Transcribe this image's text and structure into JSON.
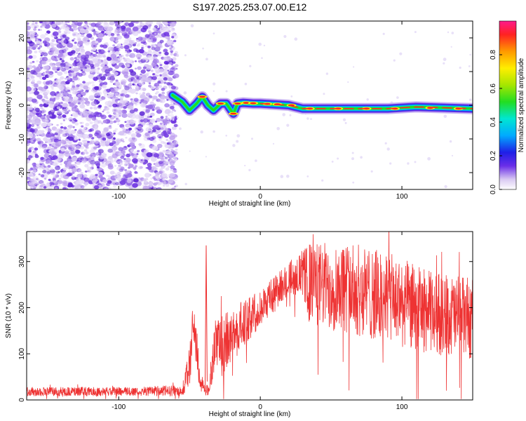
{
  "title": "S197.2025.253.07.00.E12",
  "chart_data": [
    {
      "type": "heatmap",
      "name": "spectrogram",
      "xlabel": "Height of straight line (km)",
      "ylabel": "Frequency (Hz)",
      "xlim": [
        -165,
        150
      ],
      "ylim": [
        -25,
        25
      ],
      "x_ticks": [
        -100,
        0,
        100
      ],
      "x_tick_labels": [
        "-100",
        "0",
        "100"
      ],
      "y_ticks": [
        -20,
        -10,
        0,
        10,
        20
      ],
      "y_tick_labels": [
        "-20",
        "-10",
        "0",
        "10",
        "20"
      ],
      "noise_region_km": [
        -165,
        -62
      ],
      "signal_start_km": -62,
      "signal_track": [
        {
          "x": -62,
          "y": 3.0
        },
        {
          "x": -55,
          "y": 1.0
        },
        {
          "x": -50,
          "y": -1.5
        },
        {
          "x": -45,
          "y": 0.5
        },
        {
          "x": -41,
          "y": 2.5
        },
        {
          "x": -37,
          "y": 0.0
        },
        {
          "x": -33,
          "y": -1.5
        },
        {
          "x": -28,
          "y": 0.5
        },
        {
          "x": -24,
          "y": 0.5
        },
        {
          "x": -19,
          "y": -2.5
        },
        {
          "x": -16,
          "y": 0.5
        },
        {
          "x": -12,
          "y": 0.7
        },
        {
          "x": -5,
          "y": 0.5
        },
        {
          "x": 0,
          "y": 0.5
        },
        {
          "x": 20,
          "y": 0.0
        },
        {
          "x": 30,
          "y": -1.0
        },
        {
          "x": 60,
          "y": -1.0
        },
        {
          "x": 90,
          "y": -1.0
        },
        {
          "x": 110,
          "y": -0.5
        },
        {
          "x": 150,
          "y": -1.0
        }
      ],
      "colorbar": {
        "label": "Normalized spectral amplitude",
        "range": [
          0,
          1
        ],
        "ticks": [
          0.0,
          0.2,
          0.4,
          0.6,
          0.8
        ],
        "tick_labels": [
          "0.0",
          "0.2",
          "0.4",
          "0.6",
          "0.8"
        ]
      }
    },
    {
      "type": "line",
      "name": "snr",
      "xlabel": "Height of straight line (km)",
      "ylabel": "SNR (10 * v/v)",
      "xlim": [
        -165,
        150
      ],
      "ylim": [
        0,
        365
      ],
      "x_ticks": [
        -100,
        0,
        100
      ],
      "x_tick_labels": [
        "-100",
        "0",
        "100"
      ],
      "y_ticks": [
        0,
        100,
        200,
        300
      ],
      "y_tick_labels": [
        "0",
        "100",
        "200",
        "300"
      ],
      "color": "#ee3333",
      "envelope": [
        {
          "x": -165,
          "base": 18,
          "amp": 10
        },
        {
          "x": -100,
          "base": 18,
          "amp": 10
        },
        {
          "x": -55,
          "base": 20,
          "amp": 12
        },
        {
          "x": -50,
          "base": 70,
          "amp": 50
        },
        {
          "x": -47,
          "base": 170,
          "amp": 60
        },
        {
          "x": -43,
          "base": 60,
          "amp": 40
        },
        {
          "x": -40,
          "base": 20,
          "amp": 15
        },
        {
          "x": -36,
          "base": 20,
          "amp": 12
        },
        {
          "x": -32,
          "base": 130,
          "amp": 60
        },
        {
          "x": -28,
          "base": 110,
          "amp": 70
        },
        {
          "x": -20,
          "base": 140,
          "amp": 60
        },
        {
          "x": -10,
          "base": 170,
          "amp": 50
        },
        {
          "x": 0,
          "base": 200,
          "amp": 40
        },
        {
          "x": 10,
          "base": 230,
          "amp": 40
        },
        {
          "x": 20,
          "base": 265,
          "amp": 35
        },
        {
          "x": 30,
          "base": 275,
          "amp": 50
        },
        {
          "x": 35,
          "base": 250,
          "amp": 90
        },
        {
          "x": 60,
          "base": 245,
          "amp": 100
        },
        {
          "x": 90,
          "base": 220,
          "amp": 100
        },
        {
          "x": 120,
          "base": 190,
          "amp": 90
        },
        {
          "x": 150,
          "base": 175,
          "amp": 90
        }
      ]
    }
  ]
}
